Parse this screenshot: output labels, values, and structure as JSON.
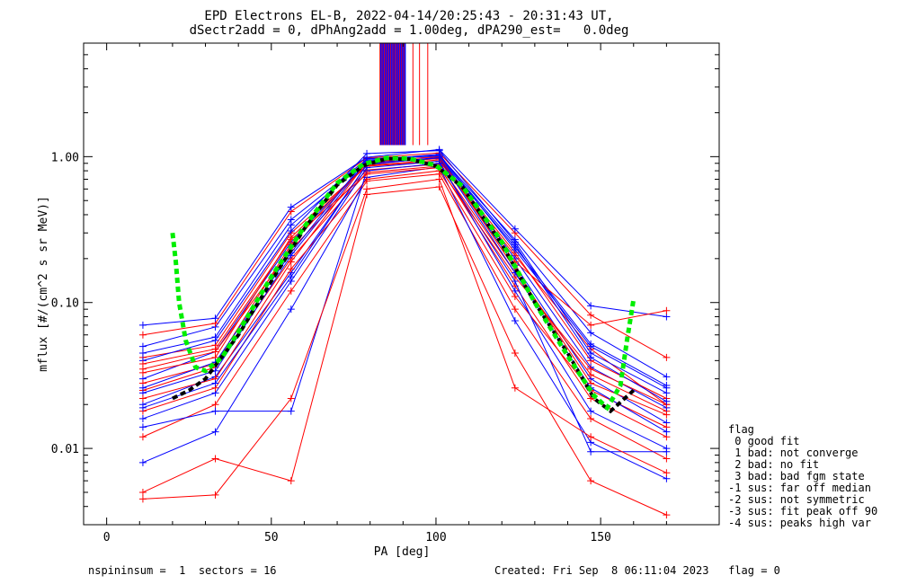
{
  "chart_data": {
    "type": "line",
    "title": "EPD Electrons EL-B, 2022-04-14/20:25:43 - 20:31:43 UT,",
    "subtitle": "dSectr2add = 0, dPhAng2add = 1.00deg, dPA290_est=   0.0deg",
    "xlabel": "PA [deg]",
    "ylabel": "mflux [#/(cm^2 s sr MeV)]",
    "xlim": [
      -7,
      186
    ],
    "ylim": [
      0.003,
      6
    ],
    "yscale": "log",
    "x_ticks": [
      0,
      50,
      100,
      150
    ],
    "x_tick_labels": [
      "0",
      "50",
      "100",
      "150"
    ],
    "y_ticks": [
      0.01,
      0.1,
      1.0
    ],
    "y_tick_labels": [
      "0.01",
      "0.10",
      "1.00"
    ],
    "grid": false,
    "pa_bins": [
      11,
      33,
      56,
      79,
      101,
      124,
      147,
      170
    ],
    "series": [
      {
        "color": "#ff0000",
        "values": [
          0.042,
          0.051,
          0.3,
          0.86,
          0.93,
          0.21,
          0.048,
          0.02
        ]
      },
      {
        "color": "#0000ff",
        "values": [
          0.03,
          0.046,
          0.26,
          0.91,
          0.97,
          0.18,
          0.03,
          0.015
        ]
      },
      {
        "color": "#ff0000",
        "values": [
          0.025,
          0.036,
          0.2,
          0.78,
          0.86,
          0.13,
          0.022,
          0.012
        ]
      },
      {
        "color": "#0000ff",
        "values": [
          0.02,
          0.031,
          0.16,
          0.88,
          0.99,
          0.24,
          0.052,
          0.027
        ]
      },
      {
        "color": "#ff0000",
        "values": [
          0.012,
          0.02,
          0.12,
          0.68,
          0.76,
          0.09,
          0.016,
          0.0085
        ]
      },
      {
        "color": "#0000ff",
        "values": [
          0.05,
          0.068,
          0.37,
          0.96,
          1.02,
          0.27,
          0.062,
          0.031
        ]
      },
      {
        "color": "#ff0000",
        "values": [
          0.035,
          0.046,
          0.23,
          0.81,
          0.89,
          0.16,
          0.032,
          0.018
        ]
      },
      {
        "color": "#0000ff",
        "values": [
          0.016,
          0.024,
          0.14,
          0.84,
          0.93,
          0.12,
          0.018,
          0.01
        ]
      },
      {
        "color": "#ff0000",
        "values": [
          0.06,
          0.072,
          0.42,
          0.98,
          1.06,
          0.3,
          0.082,
          0.042
        ]
      },
      {
        "color": "#0000ff",
        "values": [
          0.008,
          0.013,
          0.09,
          0.72,
          0.85,
          0.075,
          0.011,
          0.0062
        ]
      },
      {
        "color": "#ff0000",
        "values": [
          0.028,
          0.038,
          0.25,
          0.9,
          0.97,
          0.22,
          0.04,
          0.022
        ]
      },
      {
        "color": "#0000ff",
        "values": [
          0.024,
          0.034,
          0.21,
          0.93,
          1.0,
          0.2,
          0.036,
          0.019
        ]
      },
      {
        "color": "#ff0000",
        "values": [
          0.018,
          0.026,
          0.17,
          0.7,
          0.8,
          0.11,
          0.025,
          0.014
        ]
      },
      {
        "color": "#0000ff",
        "values": [
          0.04,
          0.055,
          0.31,
          1.05,
          1.1,
          0.26,
          0.045,
          0.024
        ]
      },
      {
        "color": "#ff0000",
        "values": [
          0.005,
          0.0085,
          0.006,
          0.55,
          0.62,
          0.045,
          0.006,
          0.0035
        ]
      },
      {
        "color": "#0000ff",
        "values": [
          0.07,
          0.078,
          0.45,
          0.99,
          1.12,
          0.32,
          0.095,
          0.08
        ]
      },
      {
        "color": "#ff0000",
        "values": [
          0.033,
          0.042,
          0.28,
          0.87,
          0.95,
          0.19,
          0.07,
          0.088
        ]
      },
      {
        "color": "#0000ff",
        "values": [
          0.014,
          0.018,
          0.018,
          0.8,
          0.9,
          0.14,
          0.0095,
          0.0095
        ]
      },
      {
        "color": "#ff0000",
        "values": [
          0.022,
          0.03,
          0.19,
          0.92,
          1.0,
          0.17,
          0.028,
          0.017
        ]
      },
      {
        "color": "#0000ff",
        "values": [
          0.045,
          0.058,
          0.34,
          0.94,
          1.04,
          0.23,
          0.05,
          0.026
        ]
      },
      {
        "color": "#ff0000",
        "values": [
          0.038,
          0.048,
          0.27,
          0.76,
          0.84,
          0.15,
          0.035,
          0.02
        ]
      },
      {
        "color": "#0000ff",
        "values": [
          0.026,
          0.039,
          0.22,
          0.97,
          1.01,
          0.25,
          0.042,
          0.021
        ]
      },
      {
        "color": "#ff0000",
        "values": [
          0.0045,
          0.0048,
          0.022,
          0.6,
          0.7,
          0.026,
          0.012,
          0.0068
        ]
      },
      {
        "color": "#0000ff",
        "values": [
          0.019,
          0.028,
          0.15,
          0.89,
          0.98,
          0.16,
          0.026,
          0.013
        ]
      }
    ],
    "fit_curves": [
      {
        "color": "#000000",
        "style": "dashed",
        "x": [
          20,
          25,
          30,
          40,
          50,
          60,
          70,
          78,
          85,
          92,
          100,
          108,
          120,
          130,
          140,
          148,
          153,
          160
        ],
        "values": [
          0.022,
          0.025,
          0.03,
          0.06,
          0.14,
          0.32,
          0.64,
          0.87,
          0.97,
          0.96,
          0.86,
          0.62,
          0.25,
          0.1,
          0.045,
          0.022,
          0.018,
          0.025
        ]
      },
      {
        "color": "#00ee00",
        "style": "dashed",
        "x": [
          20,
          21,
          22,
          24,
          27,
          30,
          35,
          40,
          50,
          60,
          70,
          78,
          85,
          92,
          100,
          108,
          120,
          130,
          140,
          148,
          152,
          156,
          158,
          160
        ],
        "values": [
          0.3,
          0.19,
          0.1,
          0.055,
          0.036,
          0.034,
          0.042,
          0.063,
          0.15,
          0.33,
          0.66,
          0.89,
          0.98,
          0.97,
          0.87,
          0.63,
          0.26,
          0.1,
          0.043,
          0.023,
          0.019,
          0.027,
          0.055,
          0.105
        ]
      }
    ],
    "legend": {
      "title": "flag",
      "placement": "right",
      "entries": [
        " 0 good fit",
        " 1 bad: not converge",
        " 2 bad: no fit",
        " 3 bad: bad fgm state",
        "-1 sus: far off median",
        "-2 sus: not symmetric",
        "-3 sus: fit peak off 90",
        "-4 sus: peaks high var"
      ]
    }
  },
  "footer": {
    "left": "nspininsum =  1  sectors = 16",
    "right": "Created: Fri Sep  8 06:11:04 2023   flag = 0"
  }
}
